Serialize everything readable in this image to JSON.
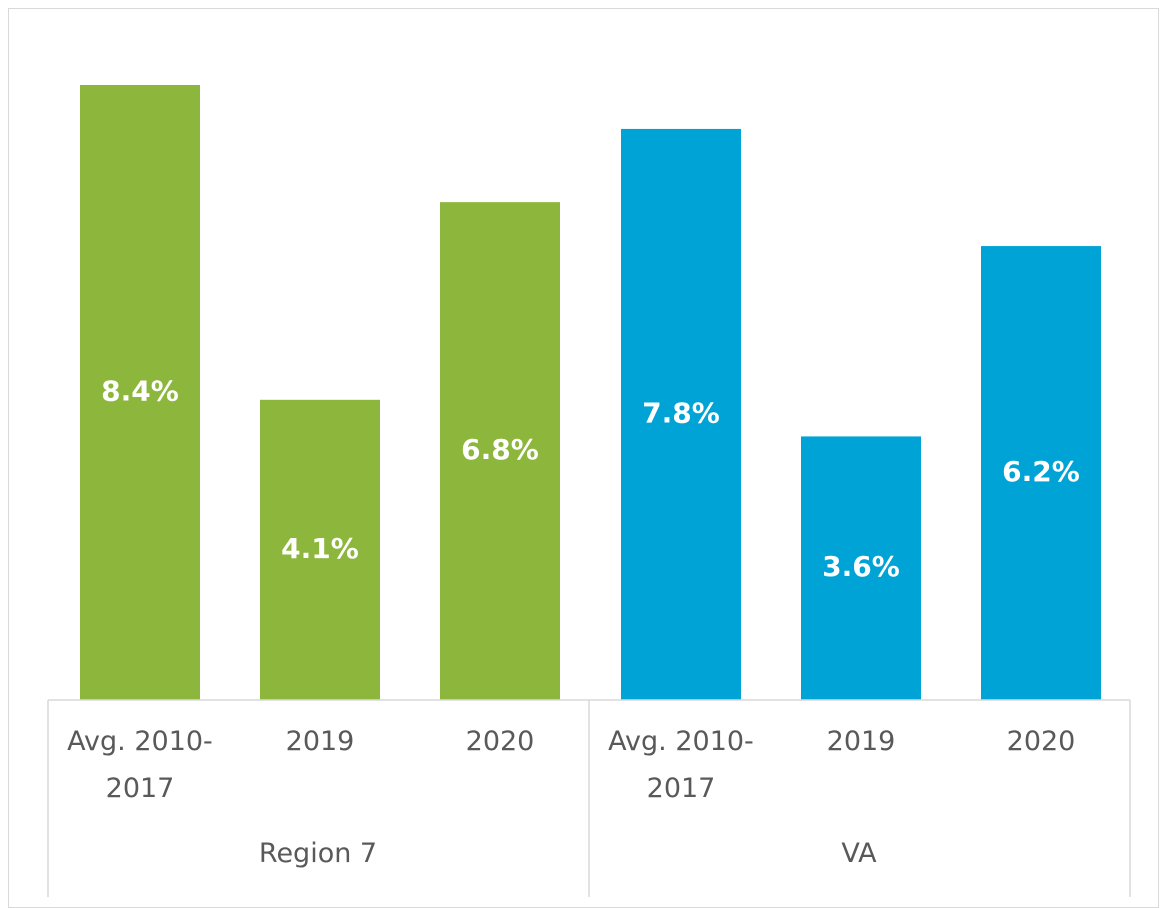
{
  "chart_data": {
    "type": "bar",
    "groups": [
      {
        "name": "Region 7",
        "color": "#8db63c",
        "categories": [
          "Avg. 2010-2017",
          "2019",
          "2020"
        ],
        "values": [
          8.4,
          4.1,
          6.8
        ],
        "value_labels": [
          "8.4%",
          "4.1%",
          "6.8%"
        ]
      },
      {
        "name": "VA",
        "color": "#00a3d6",
        "categories": [
          "Avg. 2010-2017",
          "2019",
          "2020"
        ],
        "values": [
          7.8,
          3.6,
          6.2
        ],
        "value_labels": [
          "7.8%",
          "3.6%",
          "6.2%"
        ]
      }
    ]
  }
}
